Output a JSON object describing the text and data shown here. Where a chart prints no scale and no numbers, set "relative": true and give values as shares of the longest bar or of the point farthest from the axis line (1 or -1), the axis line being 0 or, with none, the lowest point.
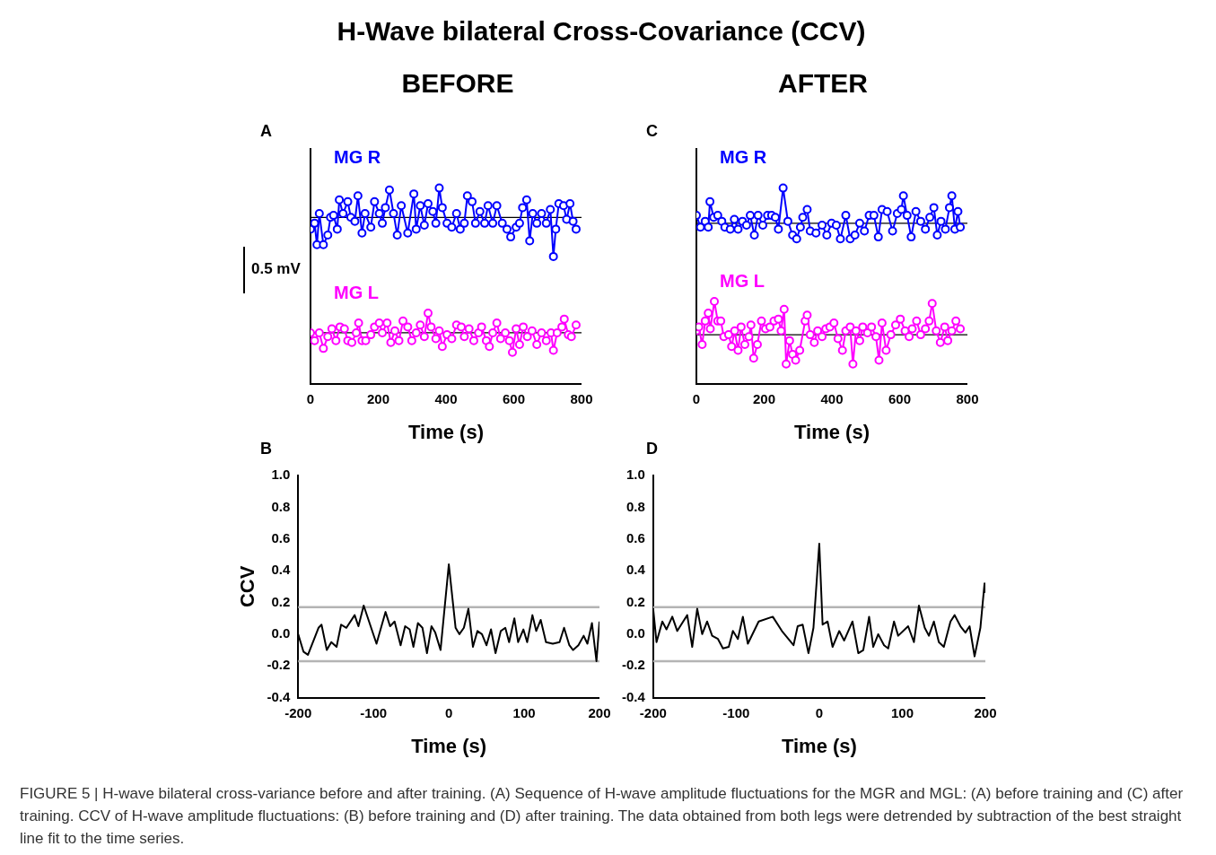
{
  "chart_data": [
    {
      "type": "line",
      "title": "H-Wave bilateral Cross-Covariance (CCV)",
      "subtitle": "BEFORE",
      "xlabel": "Time (s)",
      "relative": true,
      "xlim": [
        0,
        800
      ],
      "xticks": [
        0,
        200,
        400,
        600,
        800
      ],
      "grid": false,
      "legend": false,
      "marker": "circle",
      "annotations": [
        "A",
        "0.5 mV"
      ],
      "ref_lines": [
        {
          "axis": "y",
          "value": 0.85,
          "color": "#000000"
        },
        {
          "axis": "y",
          "value": 0.26,
          "color": "#000000"
        }
      ],
      "series": [
        {
          "name": "MG R",
          "color": "#0000ff",
          "x": [
            0,
            12,
            19,
            26,
            38,
            51,
            59,
            68,
            79,
            85,
            96,
            110,
            119,
            131,
            140,
            152,
            161,
            178,
            189,
            203,
            212,
            221,
            233,
            245,
            256,
            268,
            287,
            305,
            312,
            324,
            336,
            347,
            361,
            370,
            380,
            389,
            403,
            417,
            431,
            442,
            454,
            463,
            477,
            487,
            500,
            514,
            524,
            538,
            550,
            566,
            580,
            591,
            607,
            617,
            626,
            638,
            647,
            656,
            668,
            682,
            696,
            708,
            717,
            724,
            733,
            747,
            756,
            766,
            775,
            784
          ],
          "values": [
            0.79,
            0.82,
            0.71,
            0.87,
            0.71,
            0.76,
            0.85,
            0.86,
            0.79,
            0.94,
            0.87,
            0.93,
            0.85,
            0.83,
            0.96,
            0.77,
            0.87,
            0.8,
            0.93,
            0.87,
            0.82,
            0.9,
            0.99,
            0.87,
            0.76,
            0.91,
            0.77,
            0.97,
            0.79,
            0.91,
            0.81,
            0.92,
            0.88,
            0.82,
            1.0,
            0.9,
            0.82,
            0.8,
            0.87,
            0.79,
            0.82,
            0.96,
            0.93,
            0.82,
            0.88,
            0.82,
            0.91,
            0.82,
            0.91,
            0.82,
            0.79,
            0.75,
            0.8,
            0.82,
            0.9,
            0.94,
            0.73,
            0.87,
            0.82,
            0.87,
            0.82,
            0.89,
            0.65,
            0.79,
            0.92,
            0.91,
            0.84,
            0.92,
            0.83,
            0.79
          ]
        },
        {
          "name": "MG L",
          "color": "#ff00ff",
          "x": [
            0,
            12,
            26,
            38,
            51,
            63,
            75,
            87,
            100,
            110,
            122,
            135,
            142,
            152,
            163,
            178,
            189,
            203,
            212,
            226,
            237,
            249,
            261,
            273,
            287,
            299,
            312,
            324,
            336,
            347,
            356,
            370,
            380,
            389,
            403,
            417,
            431,
            445,
            454,
            468,
            482,
            496,
            505,
            519,
            528,
            538,
            550,
            561,
            575,
            587,
            596,
            607,
            617,
            628,
            640,
            654,
            668,
            682,
            696,
            710,
            717,
            728,
            742,
            749,
            761,
            770,
            784
          ],
          "values": [
            0.26,
            0.22,
            0.26,
            0.18,
            0.24,
            0.28,
            0.22,
            0.29,
            0.28,
            0.22,
            0.21,
            0.26,
            0.31,
            0.22,
            0.22,
            0.25,
            0.29,
            0.31,
            0.26,
            0.31,
            0.21,
            0.27,
            0.22,
            0.32,
            0.29,
            0.22,
            0.26,
            0.3,
            0.24,
            0.36,
            0.29,
            0.23,
            0.27,
            0.19,
            0.25,
            0.23,
            0.3,
            0.29,
            0.24,
            0.28,
            0.22,
            0.26,
            0.29,
            0.22,
            0.19,
            0.26,
            0.31,
            0.23,
            0.26,
            0.22,
            0.16,
            0.28,
            0.2,
            0.29,
            0.24,
            0.27,
            0.2,
            0.26,
            0.22,
            0.26,
            0.17,
            0.26,
            0.29,
            0.33,
            0.25,
            0.24,
            0.3
          ]
        }
      ]
    },
    {
      "type": "line",
      "subtitle": "AFTER",
      "xlabel": "Time (s)",
      "relative": true,
      "xlim": [
        0,
        800
      ],
      "xticks": [
        0,
        200,
        400,
        600,
        800
      ],
      "grid": false,
      "legend": false,
      "marker": "circle",
      "annotations": [
        "C"
      ],
      "ref_lines": [
        {
          "axis": "y",
          "value": 0.82,
          "color": "#000000"
        },
        {
          "axis": "y",
          "value": 0.25,
          "color": "#000000"
        }
      ],
      "series": [
        {
          "name": "MG R",
          "color": "#0000ff",
          "x": [
            0,
            12,
            26,
            35,
            40,
            51,
            63,
            75,
            84,
            100,
            112,
            123,
            136,
            148,
            159,
            171,
            182,
            196,
            210,
            222,
            233,
            242,
            256,
            270,
            284,
            296,
            307,
            314,
            327,
            336,
            353,
            371,
            385,
            399,
            413,
            425,
            441,
            454,
            468,
            482,
            496,
            510,
            524,
            537,
            548,
            563,
            579,
            593,
            605,
            611,
            622,
            634,
            648,
            662,
            676,
            689,
            701,
            711,
            722,
            735,
            747,
            754,
            763,
            772,
            779
          ],
          "values": [
            0.86,
            0.8,
            0.83,
            0.8,
            0.93,
            0.85,
            0.86,
            0.83,
            0.8,
            0.79,
            0.84,
            0.79,
            0.83,
            0.81,
            0.86,
            0.76,
            0.86,
            0.81,
            0.86,
            0.86,
            0.85,
            0.79,
            1.0,
            0.83,
            0.76,
            0.74,
            0.8,
            0.85,
            0.89,
            0.78,
            0.77,
            0.81,
            0.76,
            0.82,
            0.81,
            0.74,
            0.86,
            0.74,
            0.76,
            0.82,
            0.78,
            0.86,
            0.86,
            0.75,
            0.89,
            0.88,
            0.78,
            0.87,
            0.89,
            0.96,
            0.86,
            0.75,
            0.88,
            0.83,
            0.79,
            0.85,
            0.9,
            0.76,
            0.83,
            0.79,
            0.9,
            0.96,
            0.79,
            0.88,
            0.8
          ]
        },
        {
          "name": "MG L",
          "color": "#ff00ff",
          "x": [
            0,
            7,
            17,
            26,
            35,
            41,
            53,
            63,
            72,
            81,
            95,
            104,
            113,
            123,
            132,
            143,
            155,
            161,
            169,
            180,
            192,
            204,
            217,
            229,
            242,
            250,
            259,
            265,
            275,
            284,
            293,
            305,
            321,
            327,
            336,
            348,
            358,
            371,
            382,
            394,
            406,
            418,
            431,
            441,
            454,
            462,
            471,
            482,
            491,
            505,
            517,
            530,
            539,
            548,
            560,
            574,
            588,
            602,
            616,
            628,
            637,
            650,
            662,
            676,
            687,
            696,
            708,
            720,
            733,
            742,
            754,
            766,
            779
          ],
          "values": [
            0.27,
            0.29,
            0.2,
            0.32,
            0.36,
            0.28,
            0.42,
            0.32,
            0.32,
            0.24,
            0.25,
            0.19,
            0.27,
            0.17,
            0.29,
            0.2,
            0.24,
            0.3,
            0.13,
            0.2,
            0.32,
            0.28,
            0.29,
            0.32,
            0.33,
            0.27,
            0.38,
            0.1,
            0.22,
            0.15,
            0.12,
            0.17,
            0.32,
            0.35,
            0.25,
            0.21,
            0.27,
            0.24,
            0.28,
            0.29,
            0.31,
            0.23,
            0.17,
            0.27,
            0.29,
            0.1,
            0.27,
            0.22,
            0.29,
            0.26,
            0.29,
            0.24,
            0.12,
            0.31,
            0.17,
            0.25,
            0.3,
            0.33,
            0.27,
            0.24,
            0.28,
            0.32,
            0.25,
            0.28,
            0.32,
            0.41,
            0.27,
            0.21,
            0.29,
            0.22,
            0.27,
            0.32,
            0.28
          ]
        }
      ]
    },
    {
      "type": "line",
      "xlabel": "Time (s)",
      "ylabel": "CCV",
      "xlim": [
        -200,
        200
      ],
      "xticks": [
        -200,
        -100,
        0,
        100,
        200
      ],
      "ylim": [
        -0.4,
        1.0
      ],
      "yticks": [
        {
          "value": -0.4,
          "label": "-0.4"
        },
        {
          "value": -0.2,
          "label": "-0.2"
        },
        {
          "value": 0,
          "label": "0.0"
        },
        0.2,
        0.4,
        0.6,
        0.8,
        {
          "value": 1.0,
          "label": "1.0"
        }
      ],
      "grid": false,
      "legend": false,
      "marker": "none",
      "annotations": [
        "B"
      ],
      "ref_lines": [
        {
          "axis": "y",
          "value": 0.17,
          "color": "#b4b4b4"
        },
        {
          "axis": "y",
          "value": -0.17,
          "color": "#b4b4b4"
        }
      ],
      "series": [
        {
          "color": "#000000",
          "x": [
            -200,
            -193,
            -187,
            -173,
            -169,
            -162,
            -156,
            -149,
            -143,
            -136,
            -125,
            -120,
            -113,
            -96,
            -84,
            -78,
            -72,
            -64,
            -58,
            -52,
            -47,
            -41,
            -35,
            -29,
            -23,
            -18,
            -11,
            0,
            9,
            14,
            20,
            26,
            32,
            38,
            44,
            50,
            56,
            62,
            69,
            75,
            80,
            87,
            92,
            99,
            104,
            111,
            116,
            122,
            129,
            138,
            147,
            153,
            160,
            165,
            172,
            179,
            184,
            190,
            196,
            200
          ],
          "values": [
            0.0,
            -0.11,
            -0.13,
            0.04,
            0.06,
            -0.1,
            -0.05,
            -0.08,
            0.06,
            0.04,
            0.12,
            0.05,
            0.18,
            -0.06,
            0.14,
            0.05,
            0.08,
            -0.07,
            0.05,
            0.03,
            -0.08,
            0.07,
            0.04,
            -0.12,
            0.05,
            0.01,
            -0.1,
            0.44,
            0.04,
            0.0,
            0.04,
            0.16,
            -0.08,
            0.02,
            0.0,
            -0.07,
            0.03,
            -0.12,
            0.02,
            0.04,
            -0.05,
            0.1,
            -0.05,
            0.03,
            -0.05,
            0.12,
            0.02,
            0.09,
            -0.05,
            -0.06,
            -0.05,
            0.04,
            -0.07,
            -0.1,
            -0.07,
            -0.01,
            -0.06,
            0.07,
            -0.17,
            0.08
          ]
        }
      ]
    },
    {
      "type": "line",
      "xlabel": "Time (s)",
      "xlim": [
        -200,
        200
      ],
      "xticks": [
        -200,
        -100,
        0,
        100,
        200
      ],
      "ylim": [
        -0.4,
        1.0
      ],
      "yticks": [
        {
          "value": -0.4,
          "label": "-0.4"
        },
        {
          "value": -0.2,
          "label": "-0.2"
        },
        {
          "value": 0,
          "label": "0.0"
        },
        0.2,
        0.4,
        0.6,
        0.8,
        {
          "value": 1.0,
          "label": "1.0"
        }
      ],
      "grid": false,
      "legend": false,
      "marker": "none",
      "annotations": [
        "D",
        "FIGURE 5 | H-wave bilateral cross-variance before and after training. (A) Sequence of H-wave amplitude fluctuations for the MGR and MGL: (A) before training and (C) after training. CCV of H-wave amplitude fluctuations: (B) before training and (D) after training. The data obtained from both legs were detrended by subtraction of the best straight line fit to the time series."
      ],
      "ref_lines": [
        {
          "axis": "y",
          "value": 0.17,
          "color": "#b4b4b4"
        },
        {
          "axis": "y",
          "value": -0.17,
          "color": "#b4b4b4"
        }
      ],
      "series": [
        {
          "color": "#000000",
          "x": [
            -200,
            -196,
            -189,
            -184,
            -177,
            -171,
            -159,
            -153,
            -147,
            -141,
            -135,
            -129,
            -122,
            -116,
            -109,
            -104,
            -98,
            -92,
            -86,
            -73,
            -56,
            -45,
            -31,
            -26,
            -20,
            -13,
            -7,
            0,
            4,
            10,
            16,
            24,
            30,
            40,
            47,
            53,
            60,
            65,
            71,
            78,
            83,
            90,
            95,
            107,
            114,
            120,
            127,
            132,
            138,
            144,
            150,
            158,
            163,
            170,
            176,
            181,
            187,
            194,
            199,
            200
          ],
          "values": [
            0.16,
            -0.05,
            0.08,
            0.03,
            0.11,
            0.02,
            0.12,
            -0.08,
            0.16,
            0.0,
            0.08,
            -0.01,
            -0.03,
            -0.09,
            -0.08,
            0.02,
            -0.03,
            0.11,
            -0.06,
            0.08,
            0.11,
            0.02,
            -0.07,
            0.05,
            0.06,
            -0.12,
            0.04,
            0.57,
            0.06,
            0.08,
            -0.08,
            0.02,
            -0.04,
            0.08,
            -0.12,
            -0.1,
            0.11,
            -0.08,
            0.0,
            -0.07,
            -0.09,
            0.08,
            -0.01,
            0.05,
            -0.05,
            0.18,
            0.04,
            -0.01,
            0.08,
            -0.05,
            -0.08,
            0.08,
            0.12,
            0.05,
            0.01,
            0.05,
            -0.14,
            0.04,
            0.32,
            0.26
          ]
        }
      ]
    }
  ]
}
